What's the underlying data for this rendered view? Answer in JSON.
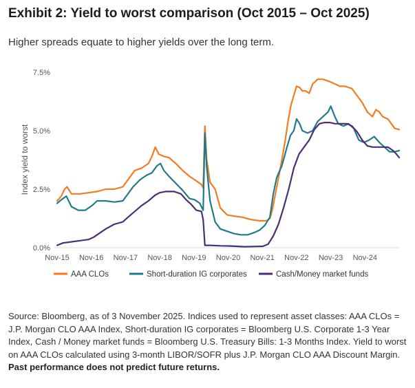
{
  "header": {
    "title": "Exhibit 2: Yield to worst comparison (Oct 2015 – Oct 2025)",
    "subtitle": "Higher spreads equate to higher yields over the long term."
  },
  "footer": {
    "source_text": "Source: Bloomberg, as of 3 November 2025. Indices used to represent asset classes: AAA CLOs = J.P. Morgan CLO AAA Index, Short-duration IG corporates = Bloomberg U.S. Corporate 1-3 Year Index, Cash / Money market funds = Bloomberg U.S. Treasury Bills: 1-3 Months Index. Yield to worst on AAA CLOs calculated using 3-month LIBOR/SOFR plus J.P. Morgan CLO AAA Discount Margin.",
    "disclaimer": "Past performance does not predict future returns."
  },
  "chart_data": {
    "type": "line",
    "title": "",
    "xlabel": "",
    "ylabel": "Index yield to worst",
    "ylim": [
      0,
      7.5
    ],
    "xlim": [
      2015.83,
      2025.83
    ],
    "yticks": [
      {
        "v": 0,
        "label": "0.0%"
      },
      {
        "v": 2.5,
        "label": "2.5%"
      },
      {
        "v": 5,
        "label": "5.0%"
      },
      {
        "v": 7.5,
        "label": "7.5%"
      }
    ],
    "xticks": [
      {
        "v": 2015.83,
        "label": "Nov-15"
      },
      {
        "v": 2016.83,
        "label": "Nov-16"
      },
      {
        "v": 2017.83,
        "label": "Nov-17"
      },
      {
        "v": 2018.83,
        "label": "Nov-18"
      },
      {
        "v": 2019.83,
        "label": "Nov-19"
      },
      {
        "v": 2020.83,
        "label": "Nov-20"
      },
      {
        "v": 2021.83,
        "label": "Nov-21"
      },
      {
        "v": 2022.83,
        "label": "Nov-22"
      },
      {
        "v": 2023.83,
        "label": "Nov-23"
      },
      {
        "v": 2024.83,
        "label": "Nov-24"
      }
    ],
    "grid": false,
    "legend": "bottom",
    "series": [
      {
        "name": "AAA CLOs",
        "color": "#F47B20",
        "points": [
          [
            2015.83,
            2.0
          ],
          [
            2015.95,
            2.2
          ],
          [
            2016.05,
            2.5
          ],
          [
            2016.12,
            2.6
          ],
          [
            2016.25,
            2.3
          ],
          [
            2016.5,
            2.3
          ],
          [
            2016.75,
            2.35
          ],
          [
            2017.0,
            2.4
          ],
          [
            2017.25,
            2.5
          ],
          [
            2017.5,
            2.5
          ],
          [
            2017.75,
            2.6
          ],
          [
            2017.9,
            2.9
          ],
          [
            2018.1,
            3.3
          ],
          [
            2018.3,
            3.4
          ],
          [
            2018.5,
            3.6
          ],
          [
            2018.6,
            3.9
          ],
          [
            2018.7,
            4.3
          ],
          [
            2018.8,
            4.0
          ],
          [
            2018.95,
            3.9
          ],
          [
            2019.1,
            3.85
          ],
          [
            2019.3,
            3.6
          ],
          [
            2019.5,
            3.3
          ],
          [
            2019.7,
            3.05
          ],
          [
            2019.85,
            2.9
          ],
          [
            2019.95,
            2.8
          ],
          [
            2020.05,
            2.7
          ],
          [
            2020.1,
            2.55
          ],
          [
            2020.15,
            5.2
          ],
          [
            2020.2,
            3.8
          ],
          [
            2020.3,
            2.8
          ],
          [
            2020.45,
            2.5
          ],
          [
            2020.6,
            1.7
          ],
          [
            2020.8,
            1.4
          ],
          [
            2021.0,
            1.35
          ],
          [
            2021.25,
            1.3
          ],
          [
            2021.5,
            1.2
          ],
          [
            2021.75,
            1.15
          ],
          [
            2021.95,
            1.15
          ],
          [
            2022.05,
            1.25
          ],
          [
            2022.12,
            1.6
          ],
          [
            2022.25,
            2.6
          ],
          [
            2022.37,
            3.5
          ],
          [
            2022.5,
            4.6
          ],
          [
            2022.58,
            5.4
          ],
          [
            2022.67,
            6.1
          ],
          [
            2022.75,
            6.5
          ],
          [
            2022.83,
            6.9
          ],
          [
            2022.92,
            6.85
          ],
          [
            2023.0,
            6.7
          ],
          [
            2023.1,
            6.7
          ],
          [
            2023.2,
            6.6
          ],
          [
            2023.3,
            7.0
          ],
          [
            2023.45,
            7.2
          ],
          [
            2023.6,
            7.2
          ],
          [
            2023.8,
            7.1
          ],
          [
            2023.95,
            7.0
          ],
          [
            2024.1,
            6.9
          ],
          [
            2024.25,
            6.9
          ],
          [
            2024.45,
            6.8
          ],
          [
            2024.6,
            6.5
          ],
          [
            2024.75,
            6.2
          ],
          [
            2024.9,
            5.8
          ],
          [
            2025.05,
            5.6
          ],
          [
            2025.15,
            5.9
          ],
          [
            2025.25,
            5.8
          ],
          [
            2025.35,
            5.6
          ],
          [
            2025.5,
            5.5
          ],
          [
            2025.6,
            5.3
          ],
          [
            2025.7,
            5.1
          ],
          [
            2025.83,
            5.05
          ]
        ]
      },
      {
        "name": "Short-duration IG corporates",
        "color": "#1F7A8C",
        "points": [
          [
            2015.83,
            1.9
          ],
          [
            2016.0,
            2.1
          ],
          [
            2016.1,
            2.2
          ],
          [
            2016.25,
            1.75
          ],
          [
            2016.45,
            1.6
          ],
          [
            2016.65,
            1.6
          ],
          [
            2016.85,
            1.8
          ],
          [
            2017.0,
            2.0
          ],
          [
            2017.25,
            2.0
          ],
          [
            2017.5,
            1.95
          ],
          [
            2017.75,
            2.0
          ],
          [
            2017.9,
            2.3
          ],
          [
            2018.05,
            2.6
          ],
          [
            2018.25,
            2.9
          ],
          [
            2018.45,
            3.1
          ],
          [
            2018.6,
            3.2
          ],
          [
            2018.75,
            3.5
          ],
          [
            2018.85,
            3.6
          ],
          [
            2018.95,
            3.3
          ],
          [
            2019.1,
            3.05
          ],
          [
            2019.3,
            2.75
          ],
          [
            2019.5,
            2.45
          ],
          [
            2019.7,
            2.1
          ],
          [
            2019.85,
            2.05
          ],
          [
            2020.0,
            1.9
          ],
          [
            2020.1,
            1.6
          ],
          [
            2020.15,
            4.9
          ],
          [
            2020.2,
            3.5
          ],
          [
            2020.3,
            2.0
          ],
          [
            2020.45,
            1.1
          ],
          [
            2020.6,
            0.8
          ],
          [
            2020.8,
            0.7
          ],
          [
            2021.0,
            0.6
          ],
          [
            2021.2,
            0.55
          ],
          [
            2021.4,
            0.55
          ],
          [
            2021.6,
            0.65
          ],
          [
            2021.75,
            0.75
          ],
          [
            2021.9,
            0.95
          ],
          [
            2022.05,
            1.3
          ],
          [
            2022.15,
            2.3
          ],
          [
            2022.25,
            3.0
          ],
          [
            2022.4,
            3.5
          ],
          [
            2022.55,
            4.3
          ],
          [
            2022.65,
            4.8
          ],
          [
            2022.75,
            5.0
          ],
          [
            2022.83,
            5.5
          ],
          [
            2022.92,
            5.3
          ],
          [
            2023.0,
            5.0
          ],
          [
            2023.15,
            4.9
          ],
          [
            2023.3,
            5.0
          ],
          [
            2023.45,
            5.4
          ],
          [
            2023.6,
            5.6
          ],
          [
            2023.75,
            5.8
          ],
          [
            2023.83,
            6.05
          ],
          [
            2023.95,
            5.6
          ],
          [
            2024.05,
            5.3
          ],
          [
            2024.2,
            5.2
          ],
          [
            2024.35,
            5.3
          ],
          [
            2024.5,
            5.1
          ],
          [
            2024.65,
            4.6
          ],
          [
            2024.8,
            4.5
          ],
          [
            2024.95,
            4.6
          ],
          [
            2025.1,
            4.75
          ],
          [
            2025.25,
            4.5
          ],
          [
            2025.4,
            4.3
          ],
          [
            2025.55,
            4.1
          ],
          [
            2025.7,
            4.1
          ],
          [
            2025.83,
            4.15
          ]
        ]
      },
      {
        "name": "Cash/Money market funds",
        "color": "#4B2D73",
        "points": [
          [
            2015.83,
            0.1
          ],
          [
            2016.0,
            0.2
          ],
          [
            2016.25,
            0.25
          ],
          [
            2016.5,
            0.3
          ],
          [
            2016.75,
            0.35
          ],
          [
            2016.9,
            0.45
          ],
          [
            2017.0,
            0.55
          ],
          [
            2017.25,
            0.8
          ],
          [
            2017.5,
            1.0
          ],
          [
            2017.75,
            1.1
          ],
          [
            2017.9,
            1.3
          ],
          [
            2018.1,
            1.55
          ],
          [
            2018.3,
            1.8
          ],
          [
            2018.5,
            2.0
          ],
          [
            2018.7,
            2.25
          ],
          [
            2018.83,
            2.35
          ],
          [
            2019.0,
            2.4
          ],
          [
            2019.25,
            2.4
          ],
          [
            2019.45,
            2.3
          ],
          [
            2019.6,
            2.05
          ],
          [
            2019.75,
            1.85
          ],
          [
            2019.9,
            1.6
          ],
          [
            2020.05,
            1.55
          ],
          [
            2020.1,
            1.2
          ],
          [
            2020.15,
            0.1
          ],
          [
            2020.3,
            0.1
          ],
          [
            2020.6,
            0.08
          ],
          [
            2020.9,
            0.07
          ],
          [
            2021.3,
            0.04
          ],
          [
            2021.6,
            0.05
          ],
          [
            2021.85,
            0.06
          ],
          [
            2022.0,
            0.15
          ],
          [
            2022.15,
            0.5
          ],
          [
            2022.3,
            1.0
          ],
          [
            2022.45,
            1.7
          ],
          [
            2022.6,
            2.5
          ],
          [
            2022.75,
            3.4
          ],
          [
            2022.9,
            4.0
          ],
          [
            2023.05,
            4.3
          ],
          [
            2023.2,
            4.6
          ],
          [
            2023.35,
            5.05
          ],
          [
            2023.5,
            5.3
          ],
          [
            2023.65,
            5.35
          ],
          [
            2023.8,
            5.35
          ],
          [
            2023.95,
            5.3
          ],
          [
            2024.1,
            5.3
          ],
          [
            2024.3,
            5.3
          ],
          [
            2024.45,
            5.2
          ],
          [
            2024.6,
            4.95
          ],
          [
            2024.75,
            4.6
          ],
          [
            2024.9,
            4.35
          ],
          [
            2025.05,
            4.3
          ],
          [
            2025.3,
            4.3
          ],
          [
            2025.5,
            4.3
          ],
          [
            2025.65,
            4.15
          ],
          [
            2025.75,
            4.0
          ],
          [
            2025.83,
            3.85
          ]
        ]
      }
    ]
  }
}
